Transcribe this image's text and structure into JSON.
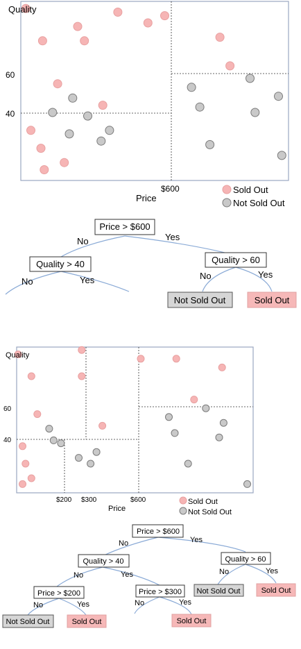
{
  "colors": {
    "sold_fill": "#f6b5b5",
    "sold_stroke": "#e8a0a0",
    "not_fill": "#c9c9c9",
    "not_stroke": "#7a7a7a",
    "edge": "#8aaad6"
  },
  "chart_data": [
    {
      "type": "scatter",
      "ylabel": "Quality",
      "xlabel": "Price",
      "x_ticks": [
        "$600"
      ],
      "y_ticks": [
        "60",
        "40"
      ],
      "legend": [
        "Sold Out",
        "Not Sold Out"
      ],
      "legend_position": "bottom-right",
      "splits": [
        {
          "axis": "x",
          "value": 600
        },
        {
          "axis": "y",
          "value": 40,
          "x_max": 600
        },
        {
          "axis": "y",
          "value": 60,
          "x_min": 600
        }
      ],
      "xlim": [
        100,
        900
      ],
      "ylim": [
        0,
        100
      ],
      "series": [
        {
          "name": "Sold Out",
          "points": [
            {
              "x": 115,
              "y": 96
            },
            {
              "x": 130,
              "y": 28
            },
            {
              "x": 160,
              "y": 18
            },
            {
              "x": 165,
              "y": 78
            },
            {
              "x": 170,
              "y": 6
            },
            {
              "x": 210,
              "y": 54
            },
            {
              "x": 230,
              "y": 10
            },
            {
              "x": 270,
              "y": 86
            },
            {
              "x": 290,
              "y": 78
            },
            {
              "x": 345,
              "y": 42
            },
            {
              "x": 390,
              "y": 94
            },
            {
              "x": 480,
              "y": 88
            },
            {
              "x": 530,
              "y": 92
            },
            {
              "x": 695,
              "y": 80
            },
            {
              "x": 725,
              "y": 64
            }
          ]
        },
        {
          "name": "Not Sold Out",
          "points": [
            {
              "x": 195,
              "y": 38
            },
            {
              "x": 245,
              "y": 26
            },
            {
              "x": 255,
              "y": 46
            },
            {
              "x": 300,
              "y": 36
            },
            {
              "x": 340,
              "y": 22
            },
            {
              "x": 365,
              "y": 28
            },
            {
              "x": 610,
              "y": 52
            },
            {
              "x": 635,
              "y": 41
            },
            {
              "x": 665,
              "y": 20
            },
            {
              "x": 785,
              "y": 57
            },
            {
              "x": 800,
              "y": 38
            },
            {
              "x": 870,
              "y": 47
            },
            {
              "x": 880,
              "y": 14
            }
          ]
        }
      ]
    },
    {
      "type": "scatter",
      "ylabel": "Quality",
      "xlabel": "Price",
      "x_ticks": [
        "$200",
        "$300",
        "$600"
      ],
      "y_ticks": [
        "60",
        "40"
      ],
      "legend": [
        "Sold Out",
        "Not Sold Out"
      ],
      "legend_position": "bottom-right",
      "splits": [
        {
          "axis": "x",
          "value": 600
        },
        {
          "axis": "y",
          "value": 40,
          "x_max": 600
        },
        {
          "axis": "y",
          "value": 60,
          "x_min": 600
        },
        {
          "axis": "x",
          "value": 200,
          "y_max": 40
        },
        {
          "axis": "x",
          "value": 300,
          "y_min": 40
        }
      ],
      "xlim": [
        100,
        900
      ],
      "ylim": [
        0,
        100
      ],
      "series": [
        {
          "name": "Sold Out",
          "points": [
            {
              "x": 105,
              "y": 95
            },
            {
              "x": 120,
              "y": 32
            },
            {
              "x": 130,
              "y": 20
            },
            {
              "x": 120,
              "y": 6
            },
            {
              "x": 150,
              "y": 80
            },
            {
              "x": 150,
              "y": 10
            },
            {
              "x": 170,
              "y": 54
            },
            {
              "x": 320,
              "y": 98
            },
            {
              "x": 320,
              "y": 80
            },
            {
              "x": 390,
              "y": 46
            },
            {
              "x": 520,
              "y": 92
            },
            {
              "x": 640,
              "y": 92
            },
            {
              "x": 795,
              "y": 86
            },
            {
              "x": 700,
              "y": 64
            }
          ]
        },
        {
          "name": "Not Sold Out",
          "points": [
            {
              "x": 225,
              "y": 36
            },
            {
              "x": 210,
              "y": 44
            },
            {
              "x": 250,
              "y": 34
            },
            {
              "x": 310,
              "y": 24
            },
            {
              "x": 350,
              "y": 20
            },
            {
              "x": 370,
              "y": 28
            },
            {
              "x": 615,
              "y": 52
            },
            {
              "x": 635,
              "y": 41
            },
            {
              "x": 680,
              "y": 20
            },
            {
              "x": 740,
              "y": 58
            },
            {
              "x": 785,
              "y": 38
            },
            {
              "x": 800,
              "y": 48
            },
            {
              "x": 880,
              "y": 6
            }
          ]
        }
      ]
    }
  ],
  "tree1": {
    "root": "Price > $600",
    "root_no": "No",
    "root_yes": "Yes",
    "left": "Quality > 40",
    "left_no": "No",
    "left_yes": "Yes",
    "right": "Quality > 60",
    "right_no": "No",
    "right_yes": "Yes",
    "leaf_not": "Not Sold Out",
    "leaf_sold": "Sold Out"
  },
  "tree2": {
    "root": "Price > $600",
    "root_no": "No",
    "root_yes": "Yes",
    "q40": "Quality > 40",
    "q40_no": "No",
    "q40_yes": "Yes",
    "q60": "Quality > 60",
    "q60_no": "No",
    "q60_yes": "Yes",
    "p200": "Price > $200",
    "p200_no": "No",
    "p200_yes": "Yes",
    "p300": "Price > $300",
    "p300_no": "No",
    "p300_yes": "Yes",
    "leaf_not_q60": "Not Sold Out",
    "leaf_sold_q60": "Sold Out",
    "leaf_not_p200": "Not Sold Out",
    "leaf_sold_p200": "Sold Out",
    "leaf_sold_p300": "Sold Out"
  }
}
